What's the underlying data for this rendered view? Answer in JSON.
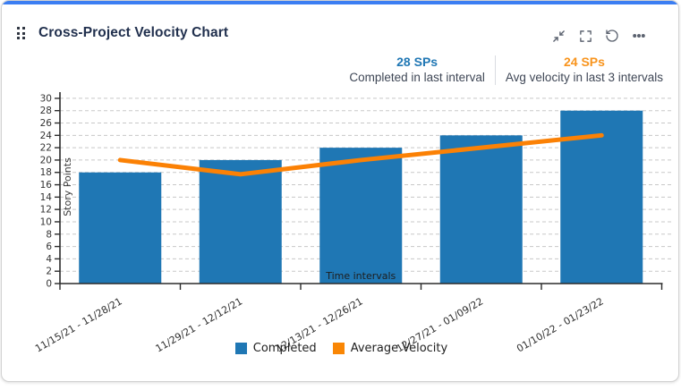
{
  "header": {
    "title": "Cross-Project Velocity Chart",
    "icons": [
      "drag-handle",
      "collapse",
      "fullscreen",
      "refresh",
      "more-options"
    ]
  },
  "stats": {
    "completed": {
      "value": "28 SPs",
      "label": "Completed in last interval",
      "color": "#2077b4"
    },
    "avg_velocity": {
      "value": "24 SPs",
      "label": "Avg velocity in last 3 intervals",
      "color": "#f8941d"
    }
  },
  "chart_data": {
    "type": "bar",
    "categories": [
      "11/15/21 - 11/28/21",
      "11/29/21 - 12/12/21",
      "12/13/21 - 12/26/21",
      "12/27/21 - 01/09/22",
      "01/10/22 - 01/23/22"
    ],
    "series": [
      {
        "name": "Completed",
        "type": "bar",
        "color": "#1f77b4",
        "values": [
          18,
          20,
          22,
          24,
          28
        ]
      },
      {
        "name": "Average Velocity",
        "type": "line",
        "color": "#fb8105",
        "values": [
          20,
          17.7,
          20,
          22,
          24
        ]
      }
    ],
    "title": "Cross-Project Velocity Chart",
    "xlabel": "Time intervals",
    "ylabel": "Story Points",
    "ylim": [
      0,
      31
    ],
    "yticks": [
      0,
      2,
      4,
      6,
      8,
      10,
      12,
      14,
      16,
      18,
      20,
      22,
      24,
      26,
      28,
      30
    ],
    "grid": true,
    "grid_style": "dashed",
    "legend_position": "bottom",
    "x_tick_label_rotation": -30
  },
  "colors": {
    "accent_top_bar": "#3c7ef2",
    "axis_line": "#2b2b2b",
    "gridline": "#c8c8c8",
    "tick_text": "#333333"
  }
}
